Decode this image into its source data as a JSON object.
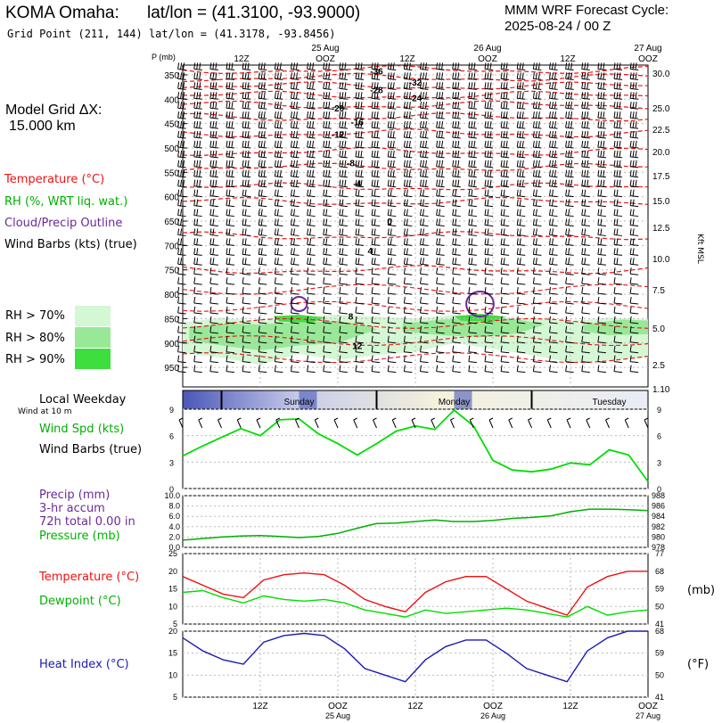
{
  "header": {
    "station": "KOMA Omaha:",
    "latlon": "lat/lon = (41.3100, -93.9000)",
    "grid": "Grid Point (211, 144) lat/lon = (41.3178, -93.8456)",
    "model": "MMM WRF Forecast Cycle:",
    "cycle": "2025-08-24 / 00 Z"
  },
  "left": {
    "grid_label": "Model Grid ΔX:",
    "grid_value": "15.000 km",
    "temp": "Temperature (°C)",
    "rh": "RH (%, WRT liq. wat.)",
    "cloud": "Cloud/Precip Outline",
    "wind": "Wind Barbs (kts) (true)",
    "rh70": "RH > 70%",
    "rh80": "RH > 80%",
    "rh90": "RH > 90%",
    "weekday": "Local Weekday",
    "wind10": "Wind at 10 m",
    "wspd": "Wind Spd (kts)",
    "wbarbs": "Wind Barbs (true)",
    "precip": "Precip (mm)",
    "accum": "3-hr accum",
    "total": "72h total 0.00 in",
    "pres": "Pressure (mb)",
    "temp2": "Temperature (°C)",
    "dew": "Dewpoint (°C)",
    "heat": "Heat Index (°C)"
  },
  "colors": {
    "temp": "#ee1111",
    "rh": "#00b000",
    "cloud": "#6a2a9a",
    "heat": "#1a1ab4"
  },
  "chart_data": [
    {
      "type": "line",
      "panel": "sounding",
      "ylabel": "P (mb)",
      "yticks": [
        "350",
        "400",
        "450",
        "500",
        "550",
        "600",
        "650",
        "700",
        "750",
        "800",
        "850",
        "900",
        "950"
      ],
      "right_label": "Kft MSL",
      "right_ticks": [
        "30.0",
        "25.0",
        "22.5",
        "20.0",
        "17.5",
        "15.0",
        "12.5",
        "10.0",
        "7.5",
        "5.0",
        "2.5",
        "1.10"
      ],
      "top_labels": [
        "12Z",
        "25 Aug",
        "OOZ",
        "12Z",
        "26 Aug",
        "OOZ",
        "12Z",
        "27 Aug",
        "OOZ"
      ],
      "temperature_contours": [
        "-36",
        "-32",
        "-28",
        "-24",
        "-20",
        "-16",
        "-12",
        "-8",
        "-4",
        "0",
        "4",
        "8",
        "12"
      ]
    },
    {
      "type": "bar",
      "panel": "weekday",
      "categories": [
        "Sunday",
        "Monday",
        "Tuesday"
      ]
    },
    {
      "type": "line",
      "panel": "wind10m",
      "ylabel": "Wind Spd (kts)",
      "ylim": [
        0,
        9
      ],
      "yticks": [
        "0",
        "3",
        "6",
        "9"
      ],
      "x_hours": [
        0,
        3,
        6,
        9,
        12,
        15,
        18,
        21,
        24,
        27,
        30,
        33,
        36,
        39,
        42,
        45,
        48,
        51,
        54,
        57,
        60,
        63,
        66,
        69,
        72
      ],
      "wind_speed": [
        3.7,
        4.8,
        5.8,
        6.8,
        6.0,
        7.8,
        7.9,
        6.2,
        5.1,
        3.8,
        5.1,
        6.5,
        7.1,
        6.7,
        8.9,
        7.1,
        3.2,
        2.1,
        1.9,
        2.2,
        2.9,
        2.7,
        4.4,
        3.8,
        0.8
      ]
    },
    {
      "type": "line",
      "panel": "precip_pressure",
      "ylabel": "Precip (mm)",
      "yticks_left": [
        "0.0",
        "2.0",
        "4.0",
        "6.0",
        "8.0",
        "10.0"
      ],
      "yticks_right": [
        "978",
        "980",
        "982",
        "984",
        "986",
        "988"
      ],
      "right_unit": "(mb)",
      "precip_total": 0.0,
      "x_hours": [
        0,
        3,
        6,
        9,
        12,
        15,
        18,
        21,
        24,
        27,
        30,
        33,
        36,
        39,
        42,
        45,
        48,
        51,
        54,
        57,
        60,
        63,
        66,
        69,
        72
      ],
      "pressure_mb": [
        979.4,
        979.7,
        980.0,
        980.2,
        980.3,
        980.1,
        979.9,
        980.1,
        980.7,
        981.7,
        982.6,
        982.7,
        983.0,
        983.3,
        983.0,
        983.0,
        983.2,
        983.6,
        983.8,
        984.1,
        984.9,
        985.4,
        985.4,
        985.3,
        985.1
      ]
    },
    {
      "type": "line",
      "panel": "temp_dew",
      "ylim": [
        5,
        25
      ],
      "yticks_left": [
        "5",
        "10",
        "15",
        "20",
        "25"
      ],
      "yticks_right": [
        "41",
        "50",
        "59",
        "68",
        "77"
      ],
      "right_unit": "(°F)",
      "series": [
        {
          "name": "Temperature (°C)",
          "values": [
            18.5,
            16.0,
            13.5,
            12.5,
            17.5,
            19.0,
            19.5,
            19.0,
            16.0,
            12.0,
            10.0,
            8.5,
            14.0,
            17.0,
            18.5,
            18.5,
            15.0,
            11.5,
            9.5,
            7.5,
            15.5,
            18.5,
            20.0,
            20.0
          ]
        },
        {
          "name": "Dewpoint (°C)",
          "values": [
            14.0,
            14.5,
            12.5,
            11.0,
            13.0,
            12.0,
            11.5,
            12.0,
            11.0,
            9.0,
            8.0,
            7.0,
            9.0,
            8.0,
            8.5,
            9.0,
            9.5,
            9.0,
            8.0,
            7.0,
            10.0,
            7.5,
            8.5,
            9.0
          ]
        }
      ]
    },
    {
      "type": "line",
      "panel": "heat_index",
      "ylim": [
        5,
        20
      ],
      "yticks_left": [
        "5",
        "10",
        "15",
        "20"
      ],
      "yticks_right": [
        "41",
        "50",
        "59",
        "68"
      ],
      "right_unit": "(°F)",
      "x_labels": [
        "12Z",
        "OOZ",
        "12Z",
        "OOZ",
        "12Z",
        "OOZ"
      ],
      "date_labels": [
        "25 Aug",
        "26 Aug",
        "27 Aug"
      ],
      "series": [
        {
          "name": "Heat Index (°C)",
          "values": [
            18.5,
            15.5,
            13.5,
            12.5,
            17.5,
            19.0,
            19.5,
            19.0,
            16.0,
            11.5,
            10.0,
            8.5,
            13.5,
            16.5,
            18.0,
            18.0,
            15.0,
            11.5,
            10.0,
            8.5,
            15.5,
            18.5,
            20.0,
            20.0
          ]
        }
      ]
    }
  ]
}
